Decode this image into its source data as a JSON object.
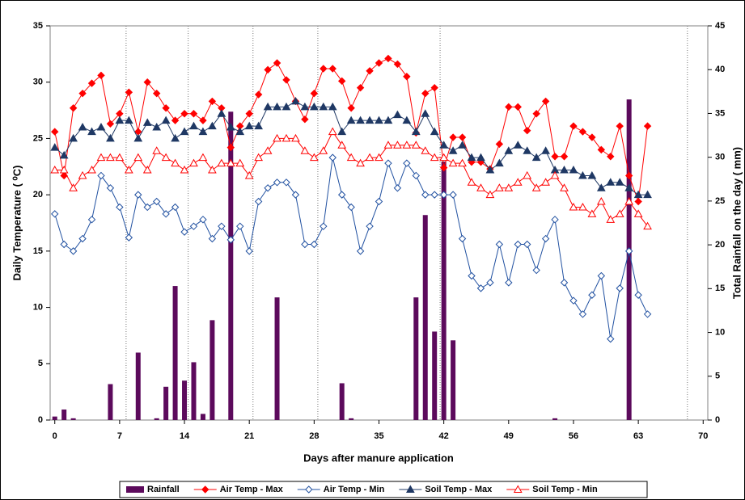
{
  "chart_data": {
    "type": "combo",
    "xlabel": "Days after manure application",
    "ylabel": "Daily Temperature ( ⁰C)",
    "y2label": "Total Rainfall on the day ( mm)",
    "x": [
      0,
      1,
      2,
      3,
      4,
      5,
      6,
      7,
      8,
      9,
      10,
      11,
      12,
      13,
      14,
      15,
      16,
      17,
      18,
      19,
      20,
      21,
      22,
      23,
      24,
      25,
      26,
      27,
      28,
      29,
      30,
      31,
      32,
      33,
      34,
      35,
      36,
      37,
      38,
      39,
      40,
      41,
      42,
      43,
      44,
      45,
      46,
      47,
      48,
      49,
      50,
      51,
      52,
      53,
      54,
      55,
      56,
      57,
      58,
      59,
      60,
      61,
      62,
      63,
      64
    ],
    "xlim": [
      -0.5,
      70.5
    ],
    "xticks": [
      0,
      7,
      14,
      21,
      28,
      35,
      42,
      49,
      56,
      63,
      70
    ],
    "ylim": [
      0,
      35
    ],
    "yticks": [
      0,
      5,
      10,
      15,
      20,
      25,
      30,
      35
    ],
    "y2lim": [
      0,
      45
    ],
    "y2ticks": [
      0,
      5,
      10,
      15,
      20,
      25,
      30,
      35,
      40,
      45
    ],
    "vlines": [
      7.7,
      14.4,
      21.4,
      28.4,
      41.6,
      68.3
    ],
    "legend": "bottom",
    "series": [
      {
        "name": "Rainfall",
        "type": "bar",
        "axis": "y2",
        "color": "#5c0a5c",
        "values": [
          0.4,
          1.2,
          0.2,
          0,
          0,
          0,
          4.1,
          0,
          0,
          7.7,
          0,
          0.2,
          3.8,
          15.3,
          4.5,
          6.6,
          0.7,
          11.4,
          0,
          35.2,
          0,
          0,
          0,
          0,
          14.0,
          0,
          0,
          0,
          0,
          0,
          0,
          4.2,
          0.2,
          0,
          0,
          0,
          0,
          0,
          0,
          14.0,
          23.4,
          10.1,
          29.5,
          9.1,
          0,
          0,
          0,
          0,
          0,
          0,
          0,
          0,
          0,
          0,
          0.2,
          0,
          0,
          0,
          0,
          0,
          0,
          0,
          36.6,
          0,
          0
        ]
      },
      {
        "name": "Air Temp - Max",
        "type": "line",
        "marker": "diamond",
        "filled": true,
        "color": "#ff0000",
        "values": [
          25.6,
          21.7,
          27.7,
          29.0,
          29.9,
          30.6,
          26.3,
          27.2,
          29.1,
          25.6,
          30.0,
          29.0,
          27.7,
          26.6,
          27.2,
          27.2,
          26.6,
          28.3,
          27.7,
          24.2,
          26.1,
          27.2,
          28.9,
          31.1,
          31.7,
          30.2,
          28.3,
          26.7,
          29.0,
          31.2,
          31.2,
          30.1,
          27.7,
          29.5,
          31.0,
          31.7,
          32.1,
          31.6,
          30.5,
          25.5,
          29.0,
          29.5,
          22.4,
          25.1,
          25.1,
          22.9,
          22.9,
          22.3,
          24.5,
          27.8,
          27.8,
          25.7,
          27.2,
          28.3,
          23.4,
          23.4,
          26.1,
          25.6,
          25.1,
          24.0,
          23.4,
          26.1,
          21.7,
          19.4,
          26.1
        ]
      },
      {
        "name": "Air Temp - Min",
        "type": "line",
        "marker": "diamond",
        "filled": false,
        "color": "#2050a0",
        "values": [
          18.3,
          15.6,
          15.0,
          16.1,
          17.8,
          21.7,
          20.6,
          18.9,
          16.2,
          20.0,
          18.9,
          19.4,
          18.3,
          18.9,
          16.7,
          17.2,
          17.8,
          16.1,
          17.2,
          16.0,
          17.2,
          15.0,
          19.4,
          20.6,
          21.1,
          21.1,
          20.0,
          15.6,
          15.6,
          17.2,
          23.3,
          20.0,
          18.9,
          15.0,
          17.2,
          19.4,
          22.8,
          20.6,
          22.8,
          21.7,
          20.0,
          20.0,
          20.0,
          20.0,
          16.1,
          12.8,
          11.7,
          12.2,
          15.6,
          12.2,
          15.6,
          15.6,
          13.3,
          16.1,
          17.8,
          12.2,
          10.6,
          9.4,
          11.1,
          12.8,
          7.2,
          11.7,
          15.0,
          11.1,
          9.4
        ]
      },
      {
        "name": "Soil Temp - Max",
        "type": "line",
        "marker": "triangle",
        "filled": true,
        "color": "#1f3864",
        "values": [
          24.2,
          23.5,
          25.0,
          26.0,
          25.6,
          26.0,
          25.0,
          26.6,
          26.6,
          25.0,
          26.4,
          26.0,
          26.6,
          25.0,
          25.6,
          26.1,
          25.6,
          26.1,
          27.2,
          26.0,
          25.6,
          26.1,
          26.1,
          27.8,
          27.8,
          27.8,
          28.3,
          27.8,
          27.8,
          27.8,
          27.8,
          25.6,
          26.6,
          26.6,
          26.6,
          26.6,
          26.6,
          27.1,
          26.6,
          25.6,
          27.2,
          25.6,
          24.4,
          23.9,
          24.4,
          23.3,
          23.3,
          22.2,
          22.8,
          23.9,
          24.4,
          23.9,
          23.3,
          23.9,
          22.2,
          22.2,
          22.2,
          21.7,
          21.7,
          20.6,
          21.1,
          21.1,
          20.6,
          20.0,
          20.0
        ]
      },
      {
        "name": "Soil Temp - Min",
        "type": "line",
        "marker": "triangle",
        "filled": false,
        "color": "#ff0000",
        "values": [
          22.2,
          22.2,
          20.6,
          21.7,
          22.2,
          23.3,
          23.3,
          23.3,
          22.2,
          23.3,
          22.2,
          23.9,
          23.3,
          22.8,
          22.2,
          22.8,
          23.3,
          22.2,
          22.8,
          22.8,
          22.8,
          21.7,
          23.3,
          23.9,
          25.0,
          25.0,
          25.0,
          23.9,
          23.3,
          23.9,
          25.6,
          24.4,
          23.3,
          22.8,
          23.3,
          23.3,
          24.4,
          24.4,
          24.4,
          24.4,
          23.9,
          23.3,
          23.3,
          22.8,
          22.8,
          21.1,
          20.6,
          20.0,
          20.6,
          20.6,
          21.1,
          21.7,
          20.6,
          21.1,
          21.7,
          20.6,
          18.9,
          18.9,
          18.3,
          19.4,
          17.8,
          18.3,
          19.4,
          18.3,
          17.2
        ]
      }
    ]
  }
}
